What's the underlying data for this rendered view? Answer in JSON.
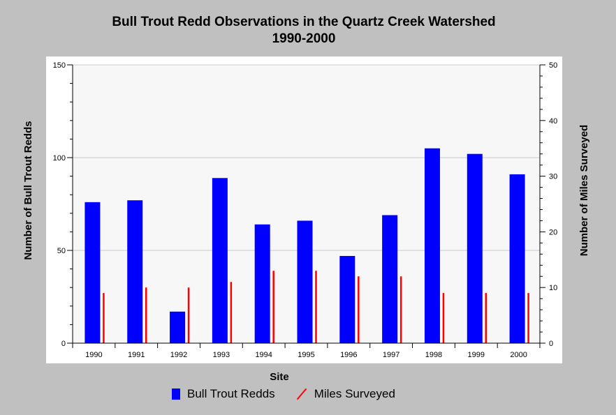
{
  "title_lines": [
    "Bull Trout Redd Observations in the Quartz Creek Watershed",
    "1990-2000"
  ],
  "chart_data": {
    "type": "bar",
    "title": "Bull Trout Redd Observations in the Quartz Creek Watershed 1990-2000",
    "xlabel": "Site",
    "ylabel": "Number of Bull Trout Redds",
    "y2label": "Number of Miles Surveyed",
    "categories": [
      "1990",
      "1991",
      "1992",
      "1993",
      "1994",
      "1995",
      "1996",
      "1997",
      "1998",
      "1999",
      "2000"
    ],
    "ylim": [
      0,
      150
    ],
    "y2lim": [
      0,
      50
    ],
    "yticks": [
      0,
      50,
      100,
      150
    ],
    "y2ticks": [
      0,
      10,
      20,
      30,
      40,
      50
    ],
    "grid": true,
    "legend_position": "bottom",
    "series": [
      {
        "name": "Bull Trout Redds",
        "kind": "bar",
        "axis": "left",
        "color": "#0000ff",
        "values": [
          76,
          77,
          17,
          89,
          64,
          66,
          47,
          69,
          105,
          102,
          91
        ]
      },
      {
        "name": "Miles Surveyed",
        "kind": "line",
        "axis": "right",
        "color": "#ff0000",
        "values": [
          9,
          10,
          10,
          11,
          13,
          13,
          12,
          12,
          9,
          9,
          9
        ]
      }
    ]
  }
}
